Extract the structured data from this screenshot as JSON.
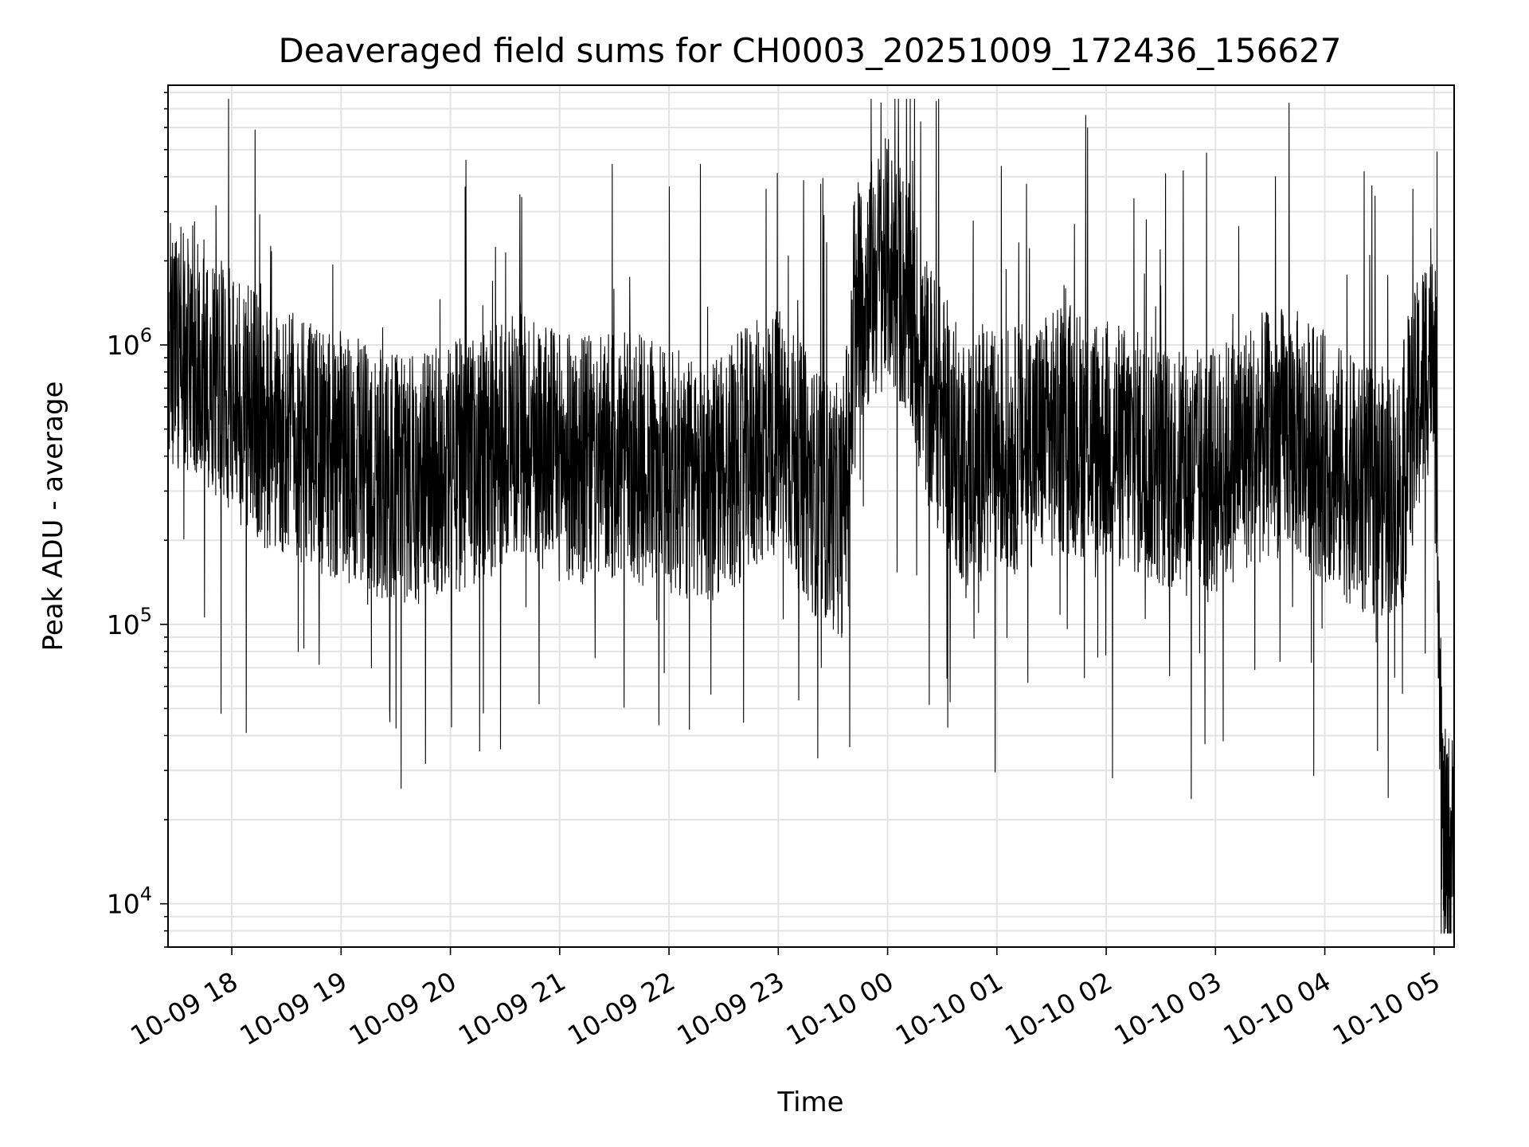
{
  "chart_data": {
    "type": "line",
    "title": "Deaveraged field sums for CH0003_20251009_172436_156627",
    "xlabel": "Time",
    "ylabel": "Peak ADU - average",
    "yscale": "log",
    "ylim": [
      7000,
      8500000
    ],
    "xlim": [
      "2025-10-09 17:25",
      "2025-10-10 05:11"
    ],
    "grid": true,
    "line_color": "#000000",
    "y_ticks": [
      {
        "value": 10000,
        "base": "10",
        "exp": "4"
      },
      {
        "value": 100000,
        "base": "10",
        "exp": "5"
      },
      {
        "value": 1000000,
        "base": "10",
        "exp": "6"
      }
    ],
    "x_ticks": [
      {
        "time": "2025-10-09 18:00",
        "label": "10-09 18"
      },
      {
        "time": "2025-10-09 19:00",
        "label": "10-09 19"
      },
      {
        "time": "2025-10-09 20:00",
        "label": "10-09 20"
      },
      {
        "time": "2025-10-09 21:00",
        "label": "10-09 21"
      },
      {
        "time": "2025-10-09 22:00",
        "label": "10-09 22"
      },
      {
        "time": "2025-10-09 23:00",
        "label": "10-09 23"
      },
      {
        "time": "2025-10-10 00:00",
        "label": "10-10 00"
      },
      {
        "time": "2025-10-10 01:00",
        "label": "10-10 01"
      },
      {
        "time": "2025-10-10 02:00",
        "label": "10-10 02"
      },
      {
        "time": "2025-10-10 03:00",
        "label": "10-10 03"
      },
      {
        "time": "2025-10-10 04:00",
        "label": "10-10 04"
      },
      {
        "time": "2025-10-10 05:00",
        "label": "10-10 05"
      }
    ],
    "series": [
      {
        "x": [
          "2025-10-09 17:25",
          "2025-10-09 17:40",
          "2025-10-09 17:50",
          "2025-10-09 18:00",
          "2025-10-09 18:20",
          "2025-10-09 18:40",
          "2025-10-09 19:00",
          "2025-10-09 19:20",
          "2025-10-09 19:40",
          "2025-10-09 20:00",
          "2025-10-09 20:20",
          "2025-10-09 20:40",
          "2025-10-09 21:00",
          "2025-10-09 21:20",
          "2025-10-09 21:40",
          "2025-10-09 22:00",
          "2025-10-09 22:20",
          "2025-10-09 22:40",
          "2025-10-09 23:00",
          "2025-10-09 23:20",
          "2025-10-09 23:35",
          "2025-10-09 23:45",
          "2025-10-10 00:00",
          "2025-10-10 00:10",
          "2025-10-10 00:20",
          "2025-10-10 00:40",
          "2025-10-10 01:00",
          "2025-10-10 01:20",
          "2025-10-10 01:40",
          "2025-10-10 02:00",
          "2025-10-10 02:20",
          "2025-10-10 02:40",
          "2025-10-10 03:00",
          "2025-10-10 03:20",
          "2025-10-10 03:40",
          "2025-10-10 04:00",
          "2025-10-10 04:20",
          "2025-10-10 04:40",
          "2025-10-10 04:55",
          "2025-10-10 05:00",
          "2025-10-10 05:05",
          "2025-10-10 05:11"
        ],
        "y": [
          1000000,
          1000000,
          800000,
          650000,
          500000,
          450000,
          400000,
          350000,
          330000,
          360000,
          400000,
          500000,
          400000,
          380000,
          400000,
          350000,
          320000,
          400000,
          500000,
          300000,
          250000,
          1500000,
          2000000,
          1500000,
          800000,
          400000,
          400000,
          450000,
          500000,
          450000,
          400000,
          350000,
          350000,
          450000,
          500000,
          400000,
          300000,
          300000,
          800000,
          1300000,
          15000,
          15000
        ]
      }
    ]
  }
}
